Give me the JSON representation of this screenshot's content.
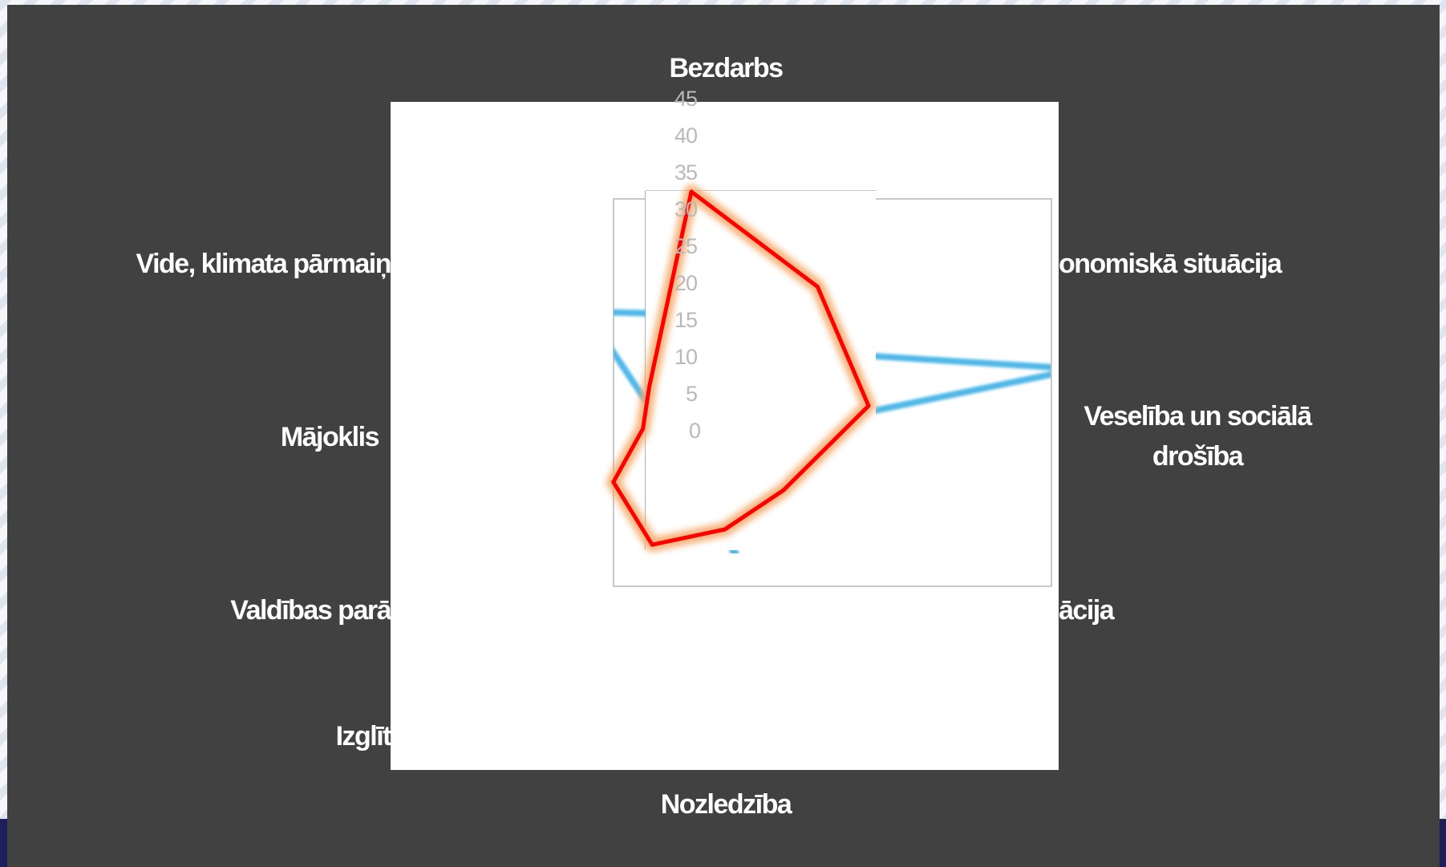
{
  "chart_data": {
    "type": "radar",
    "categories": [
      "Bezdarbs",
      "Ekonomiskā situācija",
      "Veselība un sociālā drošība",
      "Migrācija",
      "Noziedzība",
      "Izglītība",
      "Valdības parādi",
      "Mājoklis",
      "Vide, klimata pārmaiņas"
    ],
    "category_labels_visible": [
      "Bezdarbs",
      "onomiskā situācija",
      "Veselība un sociālā",
      "drošība",
      "ācija",
      "Nozledzība",
      "Izglīt",
      "Valdības parā",
      "Mājoklis",
      "Vide, klimata pārmaiņ"
    ],
    "r_ticks": [
      "45",
      "40",
      "35",
      "30",
      "25",
      "20",
      "15",
      "10",
      "5",
      "0"
    ],
    "rlim": [
      0,
      45
    ],
    "series": [
      {
        "values": [
          30,
          24,
          22,
          13,
          12,
          14,
          11,
          6,
          8
        ],
        "color": "#ff0000",
        "glow": "#f5a868"
      },
      {
        "values": [
          15,
          14,
          48,
          2,
          18,
          0,
          0,
          3,
          20
        ],
        "color": "#4fb8e8"
      }
    ]
  },
  "colors": {
    "slide_background": "#414141",
    "plot_background": "#ffffff",
    "category_text": "#ffffff",
    "tick_text": "#b9b9b9",
    "axis_line": "#bdbdbd"
  }
}
